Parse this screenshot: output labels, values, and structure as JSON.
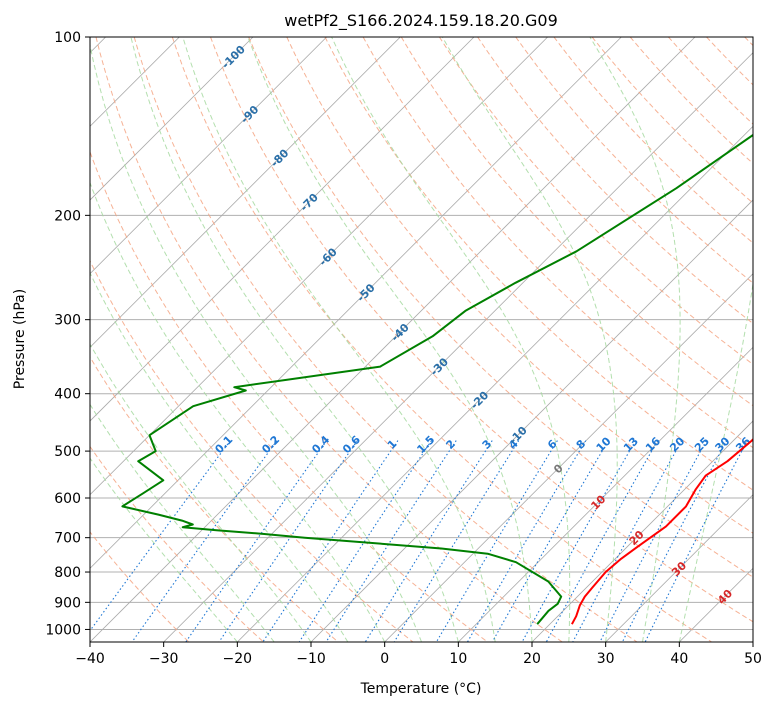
{
  "chart_data": {
    "type": "line",
    "subtype": "skew-t log-p",
    "title": "wetPf2_S166.2024.159.18.20.G09",
    "xlabel": "Temperature (°C)",
    "ylabel": "Pressure (hPa)",
    "xlim": [
      -40,
      50
    ],
    "ylim": [
      1050,
      100
    ],
    "y_scale": "log",
    "grid": true,
    "x_ticks": [
      -40,
      -30,
      -20,
      -10,
      0,
      10,
      20,
      30,
      40,
      50
    ],
    "x_tick_labels": [
      "−40",
      "−30",
      "−20",
      "−10",
      "0",
      "10",
      "20",
      "30",
      "40",
      "50"
    ],
    "y_ticks": [
      100,
      200,
      300,
      400,
      500,
      600,
      700,
      800,
      900,
      1000
    ],
    "y_tick_labels": [
      "100",
      "200",
      "300",
      "400",
      "500",
      "600",
      "700",
      "800",
      "900",
      "1000"
    ],
    "colors": {
      "temperature": "#ff0000",
      "dewpoint": "#008000",
      "dry_adiabats": "#f4a582",
      "moist_adiabats": "#a6d9a0",
      "mixing_ratio": "#1f77d4",
      "isotherms": "#999999",
      "isotherm_labels_neg": "#2a6fa8",
      "isotherm_labels_pos": "#d62728"
    },
    "series": [
      {
        "name": "Temperature",
        "x": [
          23,
          22.5,
          21.5,
          21,
          20.8,
          20.5,
          20.8,
          21.5,
          22.5,
          22.5,
          21.5,
          21,
          22,
          22.5,
          22.5,
          22.7,
          21.8,
          20,
          16.5,
          14,
          10,
          5,
          1,
          -3,
          -7,
          -9,
          -11,
          -13,
          -14,
          -15
        ],
        "y": [
          980,
          950,
          910,
          880,
          850,
          800,
          760,
          720,
          670,
          620,
          580,
          550,
          520,
          480,
          450,
          420,
          400,
          385,
          345,
          300,
          260,
          220,
          190,
          170,
          150,
          140,
          125,
          115,
          105,
          100
        ]
      },
      {
        "name": "Dew Point",
        "x": [
          18.3,
          18.0,
          18.3,
          17.8,
          14,
          7,
          2,
          -5,
          -25,
          -31,
          -38,
          -43,
          -42,
          -44,
          -48,
          -54,
          -53,
          -52,
          -58,
          -57,
          -60,
          -58,
          -53,
          -55,
          -38,
          -35,
          -34,
          -31,
          -27,
          -22,
          -17,
          -15
        ],
        "y": [
          980,
          930,
          905,
          880,
          830,
          770,
          745,
          730,
          700,
          690,
          680,
          672,
          665,
          655,
          640,
          620,
          590,
          560,
          520,
          500,
          470,
          420,
          395,
          390,
          360,
          320,
          290,
          260,
          230,
          180,
          130,
          100
        ]
      }
    ],
    "isotherm_labels": [
      "-100",
      "-90",
      "-80",
      "-70",
      "-60",
      "-50",
      "-40",
      "-30",
      "-20",
      "-10",
      "0",
      "10",
      "20",
      "30",
      "40"
    ],
    "mixing_ratio_labels": [
      "0.1",
      "0.2",
      "0.4",
      "0.6",
      "1",
      "1.5",
      "2",
      "3",
      "4",
      "6",
      "8",
      "10",
      "13",
      "16",
      "20",
      "25",
      "30",
      "36"
    ]
  }
}
